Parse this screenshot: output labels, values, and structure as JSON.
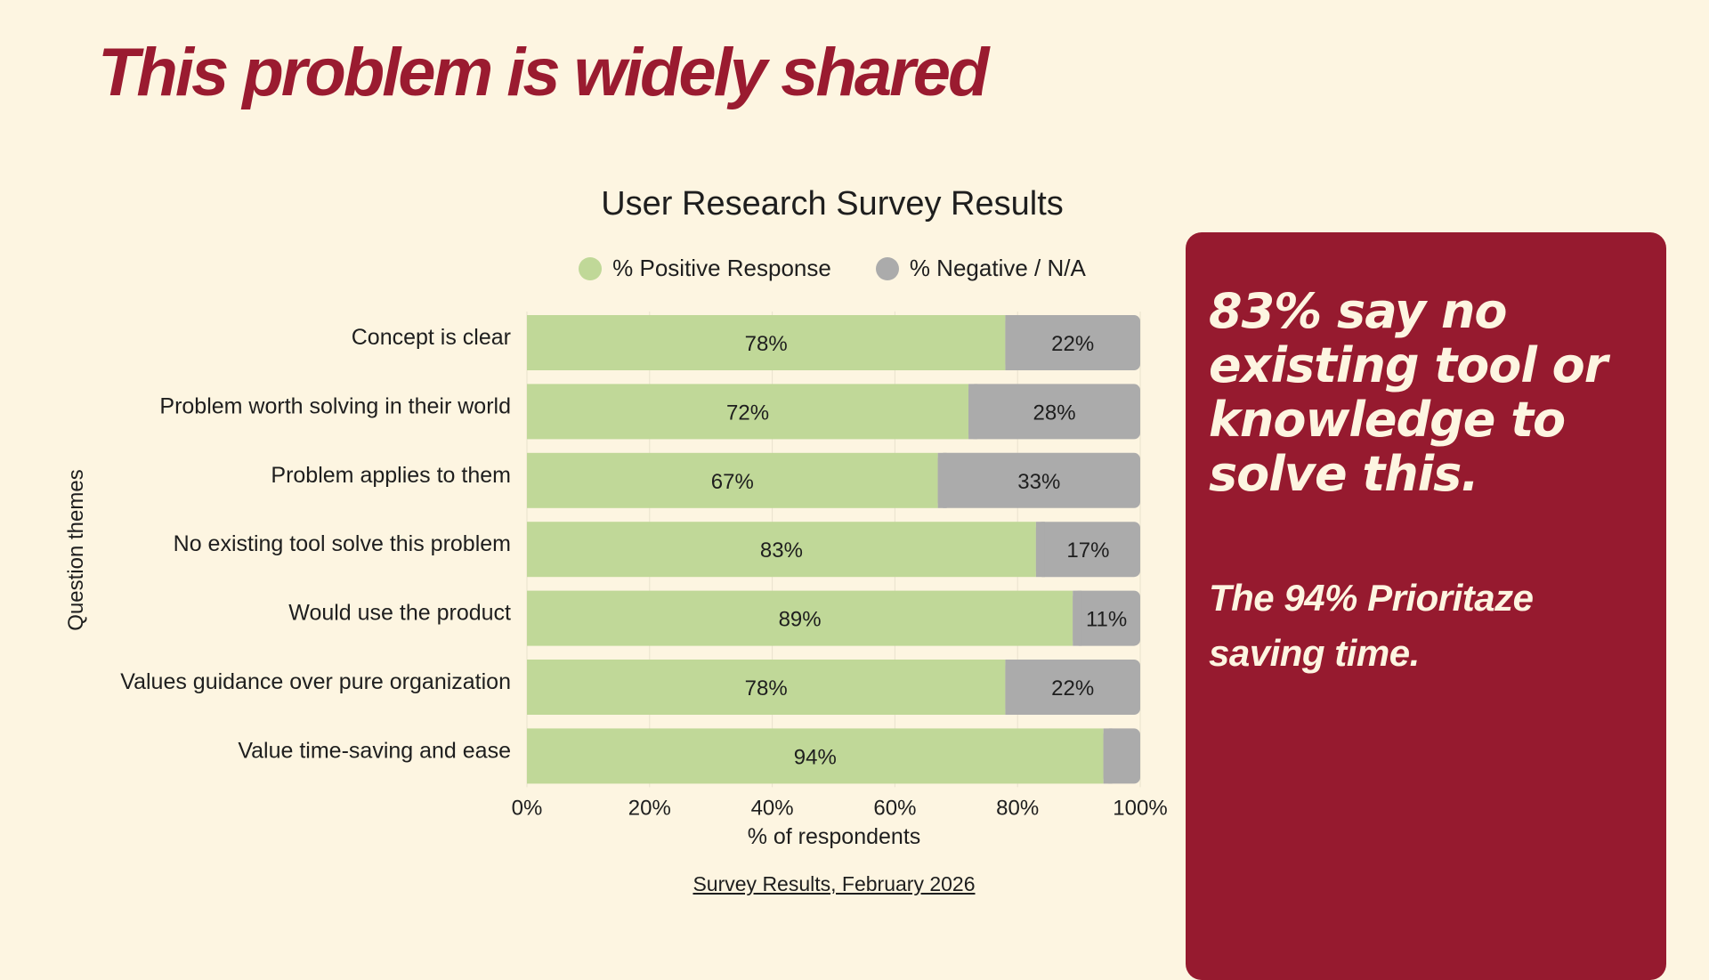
{
  "slide": {
    "title": "This problem is widely shared"
  },
  "chart_data": {
    "type": "bar",
    "orientation": "horizontal",
    "stacked": true,
    "title": "User Research Survey Results",
    "xlabel": "% of respondents",
    "ylabel": "Question themes",
    "xlim": [
      0,
      100
    ],
    "x_ticks": [
      "0%",
      "20%",
      "40%",
      "60%",
      "80%",
      "100%"
    ],
    "grid": "vertical",
    "legend_position": "top-center",
    "categories": [
      "Concept is clear",
      "Problem worth solving in their world",
      "Problem applies to them",
      "No existing tool solve this problem",
      "Would use the product",
      "Values guidance over pure organization",
      "Value time-saving and ease"
    ],
    "series": [
      {
        "name": "% Positive Response",
        "color": "#c0d898",
        "values": [
          78,
          72,
          67,
          83,
          89,
          78,
          94
        ],
        "labels": [
          "78%",
          "72%",
          "67%",
          "83%",
          "89%",
          "78%",
          "94%"
        ]
      },
      {
        "name": "% Negative / N/A",
        "color": "#ababab",
        "values": [
          22,
          28,
          33,
          17,
          11,
          22,
          6
        ],
        "labels": [
          "22%",
          "28%",
          "33%",
          "17%",
          "11%",
          "22%",
          ""
        ]
      }
    ],
    "source_link": "Survey Results, February 2026"
  },
  "callout": {
    "headline": "83% say no existing tool or knowledge to solve this.",
    "subtext": "The 94% Prioritaze saving time."
  },
  "colors": {
    "accent": "#961a2f",
    "background": "#fdf5e1"
  }
}
